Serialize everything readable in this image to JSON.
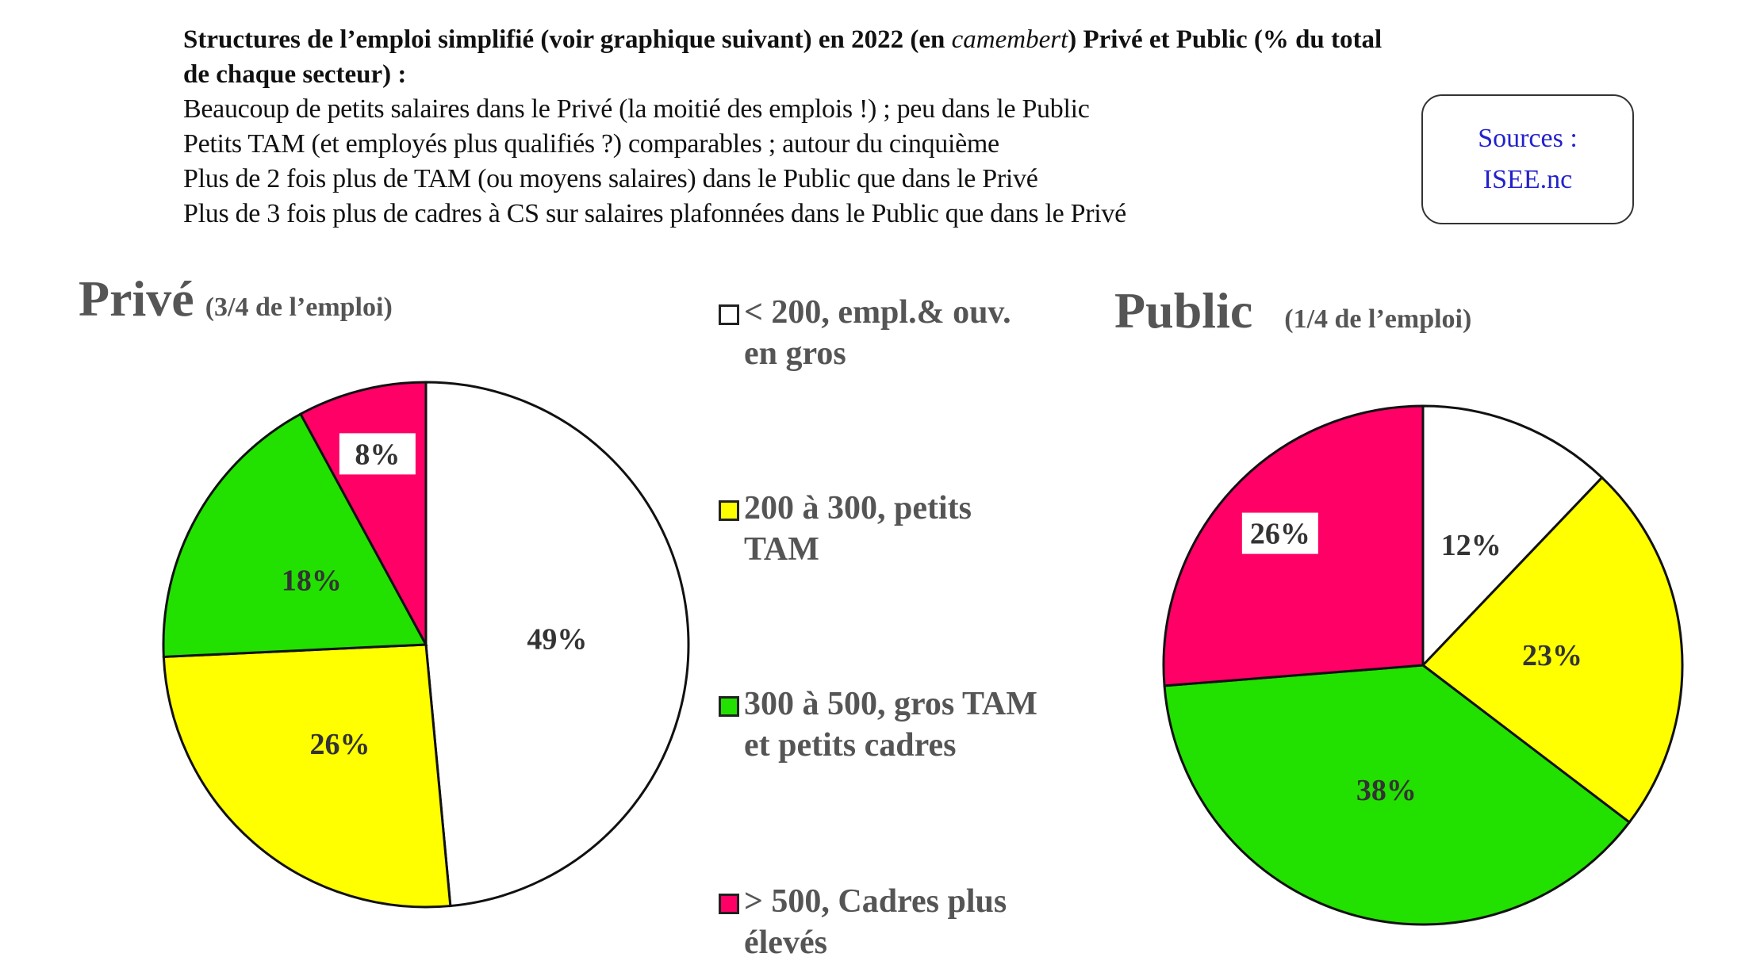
{
  "intro": {
    "heading_pre": "Structures de l’emploi simplifié (voir graphique suivant) en 2022 (en ",
    "heading_italic": "camembert",
    "heading_post": ") Privé et Public (% du total",
    "heading_line2": "de chaque secteur) :",
    "lines": [
      "Beaucoup de petits salaires dans le Privé (la moitié des emplois !) ; peu dans le Public",
      "Petits TAM (et employés plus qualifiés ?) comparables ; autour du cinquième",
      "Plus de 2 fois plus de TAM (ou moyens salaires) dans le Public que dans le Privé",
      "Plus de 3 fois plus de cadres à CS sur salaires plafonnées dans le Public que dans le Privé"
    ]
  },
  "sources": {
    "line1": "Sources :",
    "line2": "ISEE.nc",
    "color": "#2222cc"
  },
  "chart_data": [
    {
      "type": "pie",
      "title": "Privé",
      "subtitle": "(3/4 de l’emploi)",
      "categories": [
        "< 200, empl.& ouv. en gros",
        "200 à 300, petits TAM",
        "300 à 500, gros TAM et petits cadres",
        "> 500, Cadres plus élevés"
      ],
      "values": [
        49,
        26,
        18,
        8
      ],
      "labels": [
        "49%",
        "26%",
        "18%",
        "8%"
      ],
      "colors": [
        "#ffffff",
        "#ffff00",
        "#22e000",
        "#ff0066"
      ],
      "start": "12 o'clock, clockwise"
    },
    {
      "type": "pie",
      "title": "Public",
      "subtitle": "(1/4 de l’emploi)",
      "categories": [
        "< 200, empl.& ouv. en gros",
        "200 à 300, petits TAM",
        "300 à 500, gros TAM et petits cadres",
        "> 500, Cadres plus élevés"
      ],
      "values": [
        12,
        23,
        38,
        26
      ],
      "labels": [
        "12%",
        "23%",
        "38%",
        "26%"
      ],
      "colors": [
        "#ffffff",
        "#ffff00",
        "#22e000",
        "#ff0066"
      ],
      "start": "12 o'clock, clockwise"
    }
  ],
  "legend": [
    {
      "line1": "< 200, empl.& ouv.",
      "line2": "en gros",
      "color": "#ffffff"
    },
    {
      "line1": "200 à 300, petits",
      "line2": "TAM",
      "color": "#ffff00"
    },
    {
      "line1": "300 à 500, gros TAM",
      "line2": "et petits cadres",
      "color": "#22e000"
    },
    {
      "line1": "> 500, Cadres plus",
      "line2": "élevés",
      "color": "#ff0066"
    }
  ]
}
